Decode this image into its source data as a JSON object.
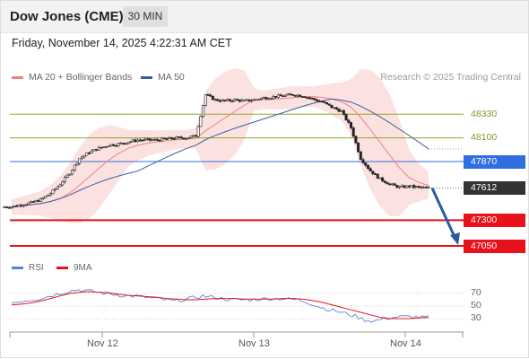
{
  "header": {
    "title": "Dow Jones (CME)",
    "timeframe": "30 MIN",
    "datetime": "Friday, November 14, 2025 4:22:31 AM CET"
  },
  "legend": {
    "ma20_label": "MA 20 + Bollinger Bands",
    "ma50_label": "MA 50",
    "ma20_color": "#f08080",
    "ma50_color": "#3a5fa0",
    "credit": "Research © 2025 Trading Central"
  },
  "levels": [
    {
      "value": "47050",
      "price": 47050,
      "style": "support-red",
      "color": "#e8121a"
    },
    {
      "value": "47300",
      "price": 47300,
      "style": "support-red",
      "color": "#e8121a"
    },
    {
      "value": "47612",
      "price": 47612,
      "style": "last-price",
      "color": "#333333"
    },
    {
      "value": "47870",
      "price": 47870,
      "style": "pivot-blue",
      "color": "#2f6fe0"
    },
    {
      "value": "48100",
      "price": 48100,
      "style": "resistance-green",
      "color": "#8aaa2a"
    },
    {
      "value": "48330",
      "price": 48330,
      "style": "resistance-green",
      "color": "#8aaa2a"
    }
  ],
  "rsi": {
    "rsi_label": "RSI",
    "ma_label": "9MA",
    "rsi_color": "#5a82d8",
    "ma_color": "#e8121a",
    "levels": [
      "70",
      "50",
      "30"
    ]
  },
  "x_axis": {
    "labels": [
      "Nov 12",
      "Nov 13",
      "Nov 14"
    ]
  },
  "chart_data": {
    "type": "candlestick",
    "last_price": 47612,
    "target": 47050,
    "y_range": [
      46900,
      48600
    ],
    "price_series": [
      47430,
      47450,
      47470,
      47500,
      47560,
      47650,
      47760,
      47900,
      47960,
      48000,
      48030,
      48040,
      48060,
      48080,
      48080,
      48080,
      48090,
      48100,
      48100,
      48120,
      48520,
      48470,
      48460,
      48470,
      48460,
      48470,
      48490,
      48500,
      48510,
      48520,
      48510,
      48480,
      48450,
      48400,
      48360,
      48200,
      47900,
      47780,
      47700,
      47650,
      47620,
      47630,
      47620,
      47612
    ],
    "rsi_series": [
      55,
      58,
      60,
      62,
      66,
      70,
      74,
      76,
      74,
      72,
      70,
      68,
      66,
      66,
      64,
      62,
      60,
      58,
      60,
      63,
      66,
      64,
      62,
      60,
      60,
      60,
      61,
      62,
      62,
      61,
      60,
      56,
      50,
      45,
      42,
      38,
      34,
      28,
      26,
      30,
      32,
      33,
      33,
      32
    ],
    "rsi_ma_series": [
      52,
      53,
      55,
      58,
      62,
      66,
      70,
      72,
      73,
      72,
      71,
      69,
      67,
      66,
      65,
      64,
      62,
      61,
      60,
      60,
      61,
      62,
      62,
      62,
      61,
      61,
      61,
      61,
      62,
      62,
      61,
      59,
      56,
      52,
      48,
      44,
      40,
      36,
      32,
      30,
      30,
      30,
      31,
      32
    ]
  }
}
